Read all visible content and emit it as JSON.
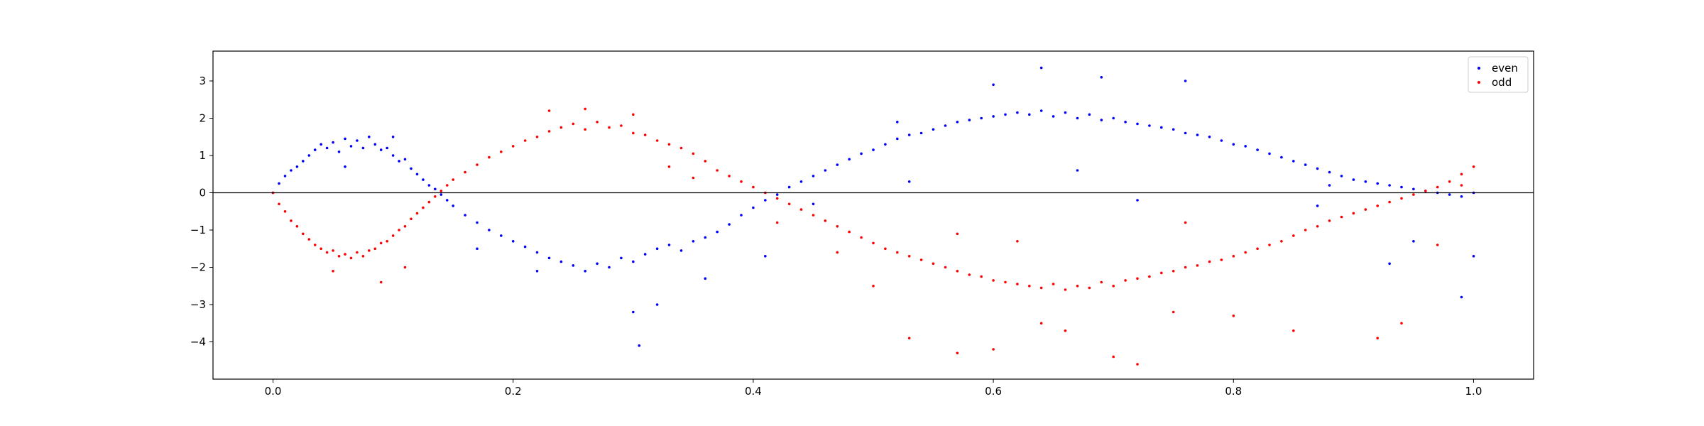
{
  "chart_data": {
    "type": "scatter",
    "title": "",
    "xlabel": "",
    "ylabel": "",
    "xlim": [
      -0.05,
      1.05
    ],
    "ylim": [
      -5.0,
      3.8
    ],
    "x_ticks": [
      0.0,
      0.2,
      0.4,
      0.6,
      0.8,
      1.0
    ],
    "x_tick_labels": [
      "0.0",
      "0.2",
      "0.4",
      "0.6",
      "0.8",
      "1.0"
    ],
    "y_ticks": [
      -4,
      -3,
      -2,
      -1,
      0,
      1,
      2,
      3
    ],
    "y_tick_labels": [
      "−4",
      "−3",
      "−2",
      "−1",
      "0",
      "1",
      "2",
      "3"
    ],
    "grid": false,
    "horizontal_reference_line": 0,
    "legend": {
      "position": "top-right",
      "entries": [
        "even",
        "odd"
      ]
    },
    "series": [
      {
        "name": "even",
        "color": "#0000ff",
        "points": [
          [
            0.0,
            0.0
          ],
          [
            0.005,
            0.25
          ],
          [
            0.01,
            0.45
          ],
          [
            0.015,
            0.6
          ],
          [
            0.02,
            0.7
          ],
          [
            0.025,
            0.85
          ],
          [
            0.03,
            1.0
          ],
          [
            0.035,
            1.15
          ],
          [
            0.04,
            1.3
          ],
          [
            0.045,
            1.2
          ],
          [
            0.05,
            1.35
          ],
          [
            0.055,
            1.1
          ],
          [
            0.06,
            1.45
          ],
          [
            0.065,
            1.25
          ],
          [
            0.07,
            1.4
          ],
          [
            0.075,
            1.2
          ],
          [
            0.08,
            1.5
          ],
          [
            0.085,
            1.3
          ],
          [
            0.09,
            1.15
          ],
          [
            0.095,
            1.2
          ],
          [
            0.1,
            1.0
          ],
          [
            0.105,
            0.85
          ],
          [
            0.11,
            0.9
          ],
          [
            0.115,
            0.65
          ],
          [
            0.12,
            0.5
          ],
          [
            0.125,
            0.35
          ],
          [
            0.13,
            0.2
          ],
          [
            0.135,
            0.1
          ],
          [
            0.14,
            -0.05
          ],
          [
            0.145,
            -0.2
          ],
          [
            0.15,
            -0.35
          ],
          [
            0.16,
            -0.6
          ],
          [
            0.17,
            -0.8
          ],
          [
            0.18,
            -1.0
          ],
          [
            0.19,
            -1.15
          ],
          [
            0.2,
            -1.3
          ],
          [
            0.21,
            -1.45
          ],
          [
            0.22,
            -1.6
          ],
          [
            0.23,
            -1.75
          ],
          [
            0.24,
            -1.85
          ],
          [
            0.25,
            -1.95
          ],
          [
            0.26,
            -2.1
          ],
          [
            0.27,
            -1.9
          ],
          [
            0.28,
            -2.0
          ],
          [
            0.29,
            -1.75
          ],
          [
            0.3,
            -1.85
          ],
          [
            0.31,
            -1.65
          ],
          [
            0.32,
            -1.5
          ],
          [
            0.33,
            -1.4
          ],
          [
            0.34,
            -1.55
          ],
          [
            0.35,
            -1.3
          ],
          [
            0.36,
            -1.2
          ],
          [
            0.37,
            -1.05
          ],
          [
            0.38,
            -0.85
          ],
          [
            0.39,
            -0.6
          ],
          [
            0.4,
            -0.4
          ],
          [
            0.41,
            -0.2
          ],
          [
            0.42,
            -0.05
          ],
          [
            0.43,
            0.15
          ],
          [
            0.44,
            0.3
          ],
          [
            0.45,
            0.45
          ],
          [
            0.46,
            0.6
          ],
          [
            0.47,
            0.75
          ],
          [
            0.48,
            0.9
          ],
          [
            0.49,
            1.05
          ],
          [
            0.5,
            1.15
          ],
          [
            0.51,
            1.3
          ],
          [
            0.52,
            1.45
          ],
          [
            0.53,
            1.55
          ],
          [
            0.54,
            1.6
          ],
          [
            0.55,
            1.7
          ],
          [
            0.56,
            1.8
          ],
          [
            0.57,
            1.9
          ],
          [
            0.58,
            1.95
          ],
          [
            0.59,
            2.0
          ],
          [
            0.6,
            2.05
          ],
          [
            0.61,
            2.1
          ],
          [
            0.62,
            2.15
          ],
          [
            0.63,
            2.1
          ],
          [
            0.64,
            2.2
          ],
          [
            0.65,
            2.05
          ],
          [
            0.66,
            2.15
          ],
          [
            0.67,
            2.0
          ],
          [
            0.68,
            2.1
          ],
          [
            0.69,
            1.95
          ],
          [
            0.7,
            2.0
          ],
          [
            0.71,
            1.9
          ],
          [
            0.72,
            1.85
          ],
          [
            0.73,
            1.8
          ],
          [
            0.74,
            1.75
          ],
          [
            0.75,
            1.7
          ],
          [
            0.76,
            1.6
          ],
          [
            0.77,
            1.55
          ],
          [
            0.78,
            1.5
          ],
          [
            0.79,
            1.4
          ],
          [
            0.8,
            1.3
          ],
          [
            0.81,
            1.25
          ],
          [
            0.82,
            1.15
          ],
          [
            0.83,
            1.05
          ],
          [
            0.84,
            0.95
          ],
          [
            0.85,
            0.85
          ],
          [
            0.86,
            0.75
          ],
          [
            0.87,
            0.65
          ],
          [
            0.88,
            0.55
          ],
          [
            0.89,
            0.45
          ],
          [
            0.9,
            0.35
          ],
          [
            0.91,
            0.3
          ],
          [
            0.92,
            0.25
          ],
          [
            0.93,
            0.2
          ],
          [
            0.94,
            0.15
          ],
          [
            0.95,
            0.1
          ],
          [
            0.96,
            0.05
          ],
          [
            0.97,
            0.0
          ],
          [
            0.98,
            -0.05
          ],
          [
            0.99,
            -0.1
          ],
          [
            1.0,
            0.0
          ],
          [
            0.06,
            0.7
          ],
          [
            0.1,
            1.5
          ],
          [
            0.17,
            -1.5
          ],
          [
            0.22,
            -2.1
          ],
          [
            0.3,
            -3.2
          ],
          [
            0.305,
            -4.1
          ],
          [
            0.32,
            -3.0
          ],
          [
            0.52,
            1.9
          ],
          [
            0.6,
            2.9
          ],
          [
            0.64,
            3.35
          ],
          [
            0.69,
            3.1
          ],
          [
            0.76,
            3.0
          ],
          [
            0.93,
            -1.9
          ],
          [
            0.99,
            -2.8
          ],
          [
            1.0,
            -1.7
          ],
          [
            0.45,
            -0.3
          ],
          [
            0.53,
            0.3
          ],
          [
            0.67,
            0.6
          ],
          [
            0.72,
            -0.2
          ],
          [
            0.87,
            -0.35
          ],
          [
            0.95,
            -1.3
          ],
          [
            0.88,
            0.2
          ],
          [
            0.41,
            -1.7
          ],
          [
            0.36,
            -2.3
          ]
        ]
      },
      {
        "name": "odd",
        "color": "#ff0000",
        "points": [
          [
            0.0,
            0.0
          ],
          [
            0.005,
            -0.3
          ],
          [
            0.01,
            -0.5
          ],
          [
            0.015,
            -0.75
          ],
          [
            0.02,
            -0.9
          ],
          [
            0.025,
            -1.1
          ],
          [
            0.03,
            -1.25
          ],
          [
            0.035,
            -1.4
          ],
          [
            0.04,
            -1.5
          ],
          [
            0.045,
            -1.6
          ],
          [
            0.05,
            -1.55
          ],
          [
            0.055,
            -1.7
          ],
          [
            0.06,
            -1.65
          ],
          [
            0.065,
            -1.75
          ],
          [
            0.07,
            -1.6
          ],
          [
            0.075,
            -1.7
          ],
          [
            0.08,
            -1.55
          ],
          [
            0.085,
            -1.5
          ],
          [
            0.09,
            -1.35
          ],
          [
            0.095,
            -1.3
          ],
          [
            0.1,
            -1.15
          ],
          [
            0.105,
            -1.0
          ],
          [
            0.11,
            -0.9
          ],
          [
            0.115,
            -0.7
          ],
          [
            0.12,
            -0.55
          ],
          [
            0.125,
            -0.4
          ],
          [
            0.13,
            -0.25
          ],
          [
            0.135,
            -0.1
          ],
          [
            0.14,
            0.05
          ],
          [
            0.145,
            0.2
          ],
          [
            0.15,
            0.35
          ],
          [
            0.16,
            0.55
          ],
          [
            0.17,
            0.75
          ],
          [
            0.18,
            0.95
          ],
          [
            0.19,
            1.1
          ],
          [
            0.2,
            1.25
          ],
          [
            0.21,
            1.4
          ],
          [
            0.22,
            1.5
          ],
          [
            0.23,
            1.65
          ],
          [
            0.24,
            1.75
          ],
          [
            0.25,
            1.85
          ],
          [
            0.26,
            1.7
          ],
          [
            0.27,
            1.9
          ],
          [
            0.28,
            1.75
          ],
          [
            0.29,
            1.8
          ],
          [
            0.3,
            1.6
          ],
          [
            0.31,
            1.55
          ],
          [
            0.32,
            1.4
          ],
          [
            0.33,
            1.3
          ],
          [
            0.34,
            1.2
          ],
          [
            0.35,
            1.05
          ],
          [
            0.36,
            0.85
          ],
          [
            0.37,
            0.6
          ],
          [
            0.38,
            0.45
          ],
          [
            0.39,
            0.3
          ],
          [
            0.4,
            0.15
          ],
          [
            0.41,
            0.0
          ],
          [
            0.42,
            -0.15
          ],
          [
            0.43,
            -0.3
          ],
          [
            0.44,
            -0.45
          ],
          [
            0.45,
            -0.6
          ],
          [
            0.46,
            -0.75
          ],
          [
            0.47,
            -0.9
          ],
          [
            0.48,
            -1.05
          ],
          [
            0.49,
            -1.2
          ],
          [
            0.5,
            -1.35
          ],
          [
            0.51,
            -1.5
          ],
          [
            0.52,
            -1.6
          ],
          [
            0.53,
            -1.7
          ],
          [
            0.54,
            -1.8
          ],
          [
            0.55,
            -1.9
          ],
          [
            0.56,
            -2.0
          ],
          [
            0.57,
            -2.1
          ],
          [
            0.58,
            -2.2
          ],
          [
            0.59,
            -2.25
          ],
          [
            0.6,
            -2.35
          ],
          [
            0.61,
            -2.4
          ],
          [
            0.62,
            -2.45
          ],
          [
            0.63,
            -2.5
          ],
          [
            0.64,
            -2.55
          ],
          [
            0.65,
            -2.45
          ],
          [
            0.66,
            -2.6
          ],
          [
            0.67,
            -2.5
          ],
          [
            0.68,
            -2.55
          ],
          [
            0.69,
            -2.4
          ],
          [
            0.7,
            -2.5
          ],
          [
            0.71,
            -2.35
          ],
          [
            0.72,
            -2.3
          ],
          [
            0.73,
            -2.25
          ],
          [
            0.74,
            -2.15
          ],
          [
            0.75,
            -2.1
          ],
          [
            0.76,
            -2.0
          ],
          [
            0.77,
            -1.95
          ],
          [
            0.78,
            -1.85
          ],
          [
            0.79,
            -1.8
          ],
          [
            0.8,
            -1.7
          ],
          [
            0.81,
            -1.6
          ],
          [
            0.82,
            -1.5
          ],
          [
            0.83,
            -1.4
          ],
          [
            0.84,
            -1.3
          ],
          [
            0.85,
            -1.15
          ],
          [
            0.86,
            -1.0
          ],
          [
            0.87,
            -0.9
          ],
          [
            0.88,
            -0.75
          ],
          [
            0.89,
            -0.65
          ],
          [
            0.9,
            -0.55
          ],
          [
            0.91,
            -0.45
          ],
          [
            0.92,
            -0.35
          ],
          [
            0.93,
            -0.25
          ],
          [
            0.94,
            -0.15
          ],
          [
            0.95,
            -0.05
          ],
          [
            0.96,
            0.05
          ],
          [
            0.97,
            0.15
          ],
          [
            0.98,
            0.3
          ],
          [
            0.99,
            0.5
          ],
          [
            1.0,
            0.7
          ],
          [
            0.05,
            -2.1
          ],
          [
            0.09,
            -2.4
          ],
          [
            0.11,
            -2.0
          ],
          [
            0.23,
            2.2
          ],
          [
            0.26,
            2.25
          ],
          [
            0.3,
            2.1
          ],
          [
            0.35,
            0.4
          ],
          [
            0.5,
            -2.5
          ],
          [
            0.53,
            -3.9
          ],
          [
            0.57,
            -4.3
          ],
          [
            0.6,
            -4.2
          ],
          [
            0.64,
            -3.5
          ],
          [
            0.66,
            -3.7
          ],
          [
            0.7,
            -4.4
          ],
          [
            0.72,
            -4.6
          ],
          [
            0.75,
            -3.2
          ],
          [
            0.8,
            -3.3
          ],
          [
            0.85,
            -3.7
          ],
          [
            0.92,
            -3.9
          ],
          [
            0.94,
            -3.5
          ],
          [
            0.57,
            -1.1
          ],
          [
            0.62,
            -1.3
          ],
          [
            0.76,
            -0.8
          ],
          [
            0.97,
            -1.4
          ],
          [
            0.99,
            0.2
          ],
          [
            0.33,
            0.7
          ],
          [
            0.47,
            -1.6
          ],
          [
            0.42,
            -0.8
          ]
        ]
      }
    ]
  }
}
